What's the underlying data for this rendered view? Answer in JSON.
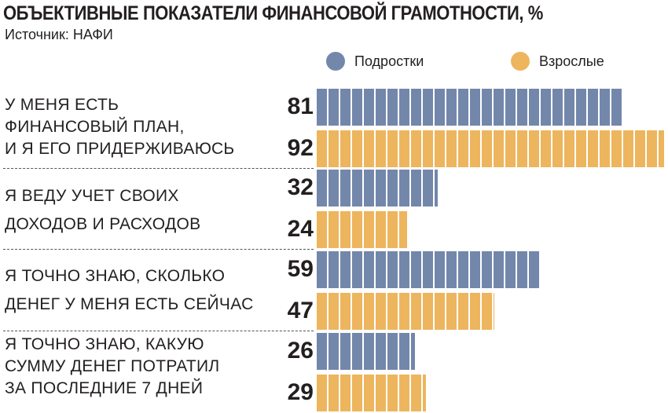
{
  "chart_data": {
    "type": "bar",
    "title": "ОБЪЕКТИВНЫЕ ПОКАЗАТЕЛИ ФИНАНСОВОЙ ГРАМОТНОСТИ, %",
    "subtitle": "Источник: НАФИ",
    "categories": [
      "У МЕНЯ ЕСТЬ ФИНАНСОВЫЙ ПЛАН, И Я ЕГО ПРИДЕРЖИВАЮСЬ",
      "Я ВЕДУ УЧЕТ СВОИХ ДОХОДОВ И РАСХОДОВ",
      "Я ТОЧНО ЗНАЮ, СКОЛЬКО ДЕНЕГ У МЕНЯ ЕСТЬ СЕЙЧАС",
      "Я ТОЧНО ЗНАЮ, КАКУЮ СУММУ ДЕНЕГ ПОТРАТИЛ ЗА ПОСЛЕДНИЕ 7 ДНЕЙ"
    ],
    "category_lines": [
      [
        "У МЕНЯ ЕСТЬ",
        "ФИНАНСОВЫЙ ПЛАН,",
        "И Я ЕГО ПРИДЕРЖИВАЮСЬ"
      ],
      [
        "Я ВЕДУ УЧЕТ СВОИХ",
        "ДОХОДОВ И РАСХОДОВ"
      ],
      [
        "Я ТОЧНО ЗНАЮ, СКОЛЬКО",
        "ДЕНЕГ У МЕНЯ ЕСТЬ СЕЙЧАС"
      ],
      [
        "Я ТОЧНО ЗНАЮ, КАКУЮ",
        "СУММУ ДЕНЕГ ПОТРАТИЛ",
        "ЗА ПОСЛЕДНИЕ 7 ДНЕЙ"
      ]
    ],
    "series": [
      {
        "name": "Подростки",
        "color": "#7387ab",
        "values": [
          81,
          32,
          59,
          26
        ]
      },
      {
        "name": "Взрослые",
        "color": "#edb55d",
        "values": [
          92,
          24,
          47,
          29
        ]
      }
    ],
    "xlim": [
      0,
      92
    ],
    "legend": "top-right"
  }
}
